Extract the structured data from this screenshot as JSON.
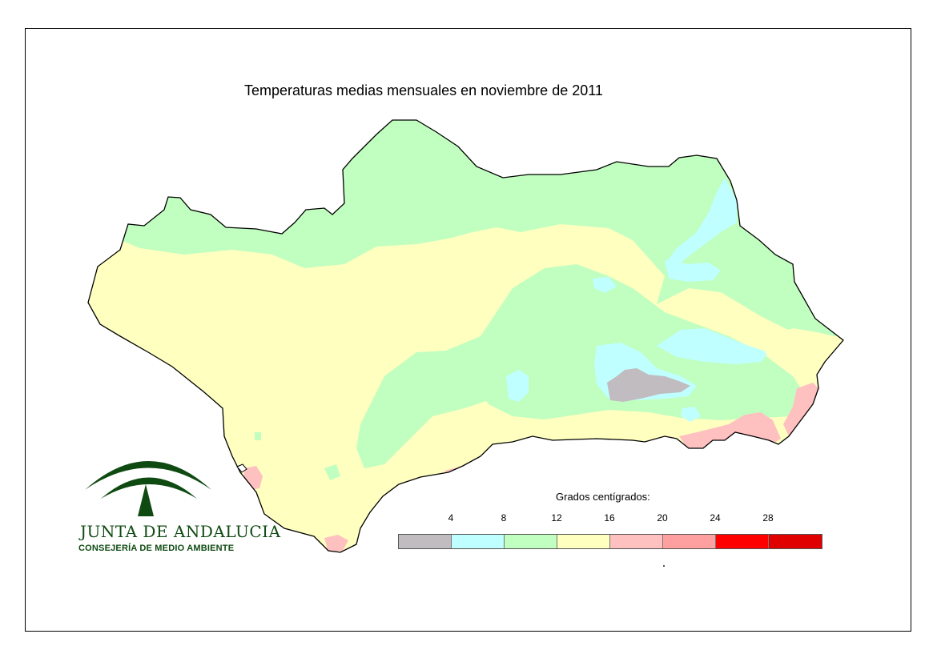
{
  "map": {
    "title": "Temperaturas medias mensuales en noviembre de 2011"
  },
  "logo": {
    "name": "JUNTA DE ANDALUCIA",
    "subtitle": "CONSEJERÍA DE MEDIO AMBIENTE",
    "icon": "junta-andalucia-emblem-icon",
    "color": "#0f4a12"
  },
  "legend": {
    "title": "Grados centígrados:",
    "ticks": [
      "4",
      "8",
      "12",
      "16",
      "20",
      "24",
      "28"
    ],
    "classes": [
      {
        "color": "#c0bcc0"
      },
      {
        "color": "#c0ffff"
      },
      {
        "color": "#c0ffc0"
      },
      {
        "color": "#ffffc0"
      },
      {
        "color": "#ffc0c0"
      },
      {
        "color": "#ffa0a0"
      },
      {
        "color": "#ff0000"
      },
      {
        "color": "#e00000"
      }
    ]
  }
}
